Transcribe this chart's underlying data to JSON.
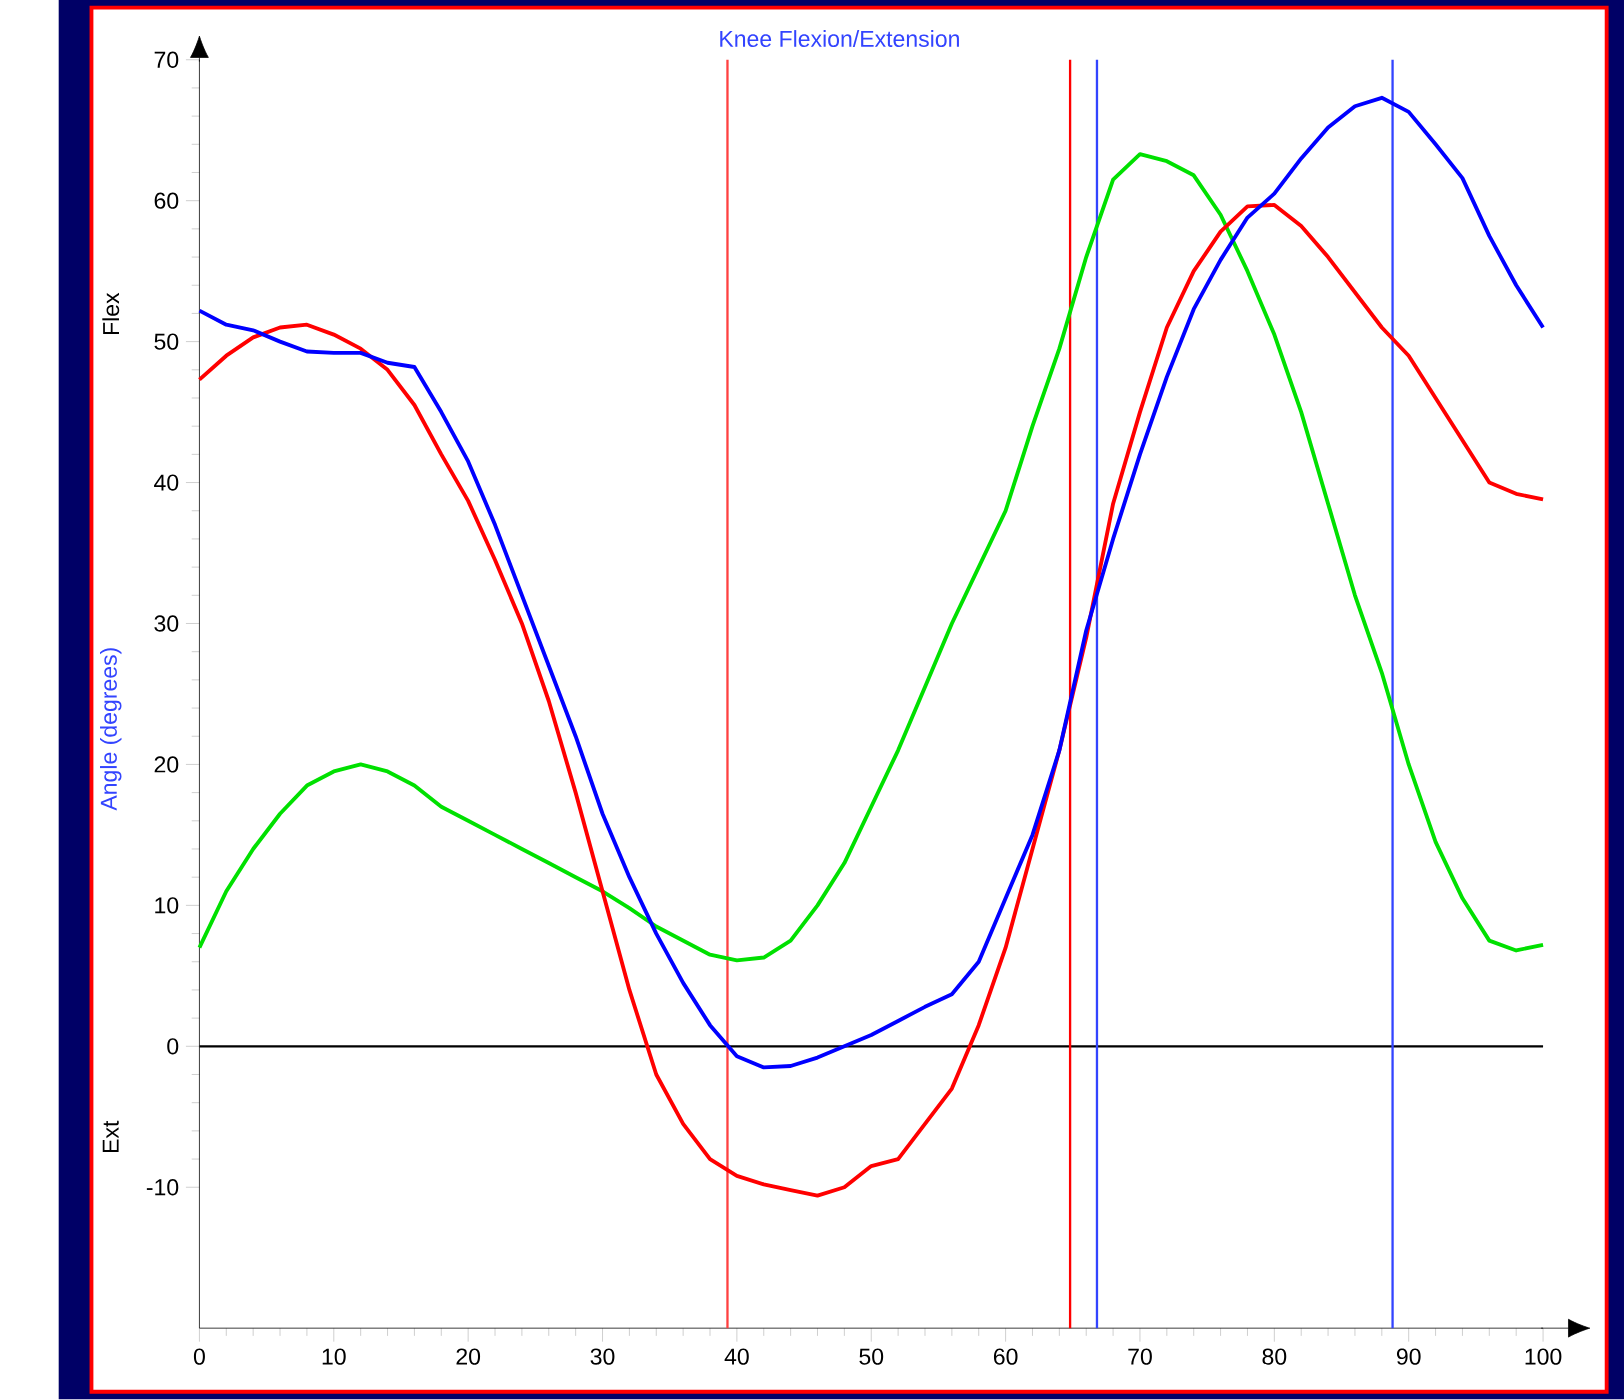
{
  "chart_data": {
    "type": "line",
    "title": "Knee Flexion/Extension",
    "ylabel": "Angle (degrees)",
    "annotations": [
      "Flex",
      "Ext"
    ],
    "x": [
      0,
      2,
      4,
      6,
      8,
      10,
      12,
      14,
      16,
      18,
      20,
      22,
      24,
      26,
      28,
      30,
      32,
      34,
      36,
      38,
      40,
      42,
      44,
      46,
      48,
      50,
      52,
      54,
      56,
      58,
      60,
      62,
      64,
      66,
      68,
      70,
      72,
      74,
      76,
      78,
      80,
      82,
      84,
      86,
      88,
      90,
      92,
      94,
      96,
      98,
      100
    ],
    "series": [
      {
        "color": "#00e000",
        "values": [
          7,
          11,
          14,
          16.5,
          18.5,
          19.5,
          20,
          19.5,
          18.5,
          17,
          16,
          15,
          14,
          13,
          12,
          11,
          9.8,
          8.5,
          7.5,
          6.5,
          6.1,
          6.3,
          7.5,
          10,
          13,
          17,
          21,
          25.5,
          30,
          34,
          38,
          44,
          49.5,
          56,
          61.5,
          63.3,
          62.8,
          61.8,
          59,
          55,
          50.5,
          45,
          38.5,
          32,
          26.5,
          20,
          14.5,
          10.5,
          7.5,
          6.8,
          7.2
        ]
      },
      {
        "color": "#ff0000",
        "values": [
          47.3,
          49,
          50.3,
          51,
          51.2,
          50.5,
          49.5,
          48,
          45.5,
          42,
          38.7,
          34.5,
          30,
          24.5,
          18,
          11,
          4,
          -2,
          -5.5,
          -8,
          -9.2,
          -9.8,
          -10.2,
          -10.6,
          -10,
          -8.5,
          -8,
          -5.5,
          -3,
          1.5,
          7,
          14,
          21,
          29,
          38.5,
          45,
          51,
          55,
          57.8,
          59.6,
          59.7,
          58.2,
          56,
          53.5,
          51,
          49,
          46,
          43,
          40,
          39.2,
          38.8
        ]
      },
      {
        "color": "#0000ff",
        "values": [
          52.2,
          51.2,
          50.8,
          50,
          49.3,
          49.2,
          49.2,
          48.5,
          48.2,
          45,
          41.5,
          37,
          32,
          27,
          22,
          16.5,
          12,
          8,
          4.5,
          1.5,
          -0.7,
          -1.5,
          -1.4,
          -0.8,
          0,
          0.8,
          1.8,
          2.8,
          3.7,
          6,
          10.5,
          15,
          21,
          29.5,
          36,
          42,
          47.5,
          52.3,
          55.8,
          58.8,
          60.5,
          63,
          65.2,
          66.7,
          67.3,
          66.3,
          64,
          61.6,
          57.5,
          54,
          51
        ]
      }
    ],
    "xlim": [
      0,
      100
    ],
    "ylim": [
      -20,
      70
    ],
    "xticks": [
      0,
      10,
      20,
      30,
      40,
      50,
      60,
      70,
      80,
      90,
      100
    ],
    "yticks": [
      -10,
      0,
      10,
      20,
      30,
      40,
      50,
      60,
      70
    ],
    "ref_lines": [
      {
        "axis": "y",
        "value": 0,
        "color": "#000000"
      },
      {
        "axis": "x",
        "value": 39.3,
        "color": "#ff4040"
      },
      {
        "axis": "x",
        "value": 64.8,
        "color": "#ff0000"
      },
      {
        "axis": "x",
        "value": 66.8,
        "color": "#3344ff"
      },
      {
        "axis": "x",
        "value": 88.8,
        "color": "#3344ff"
      }
    ]
  }
}
